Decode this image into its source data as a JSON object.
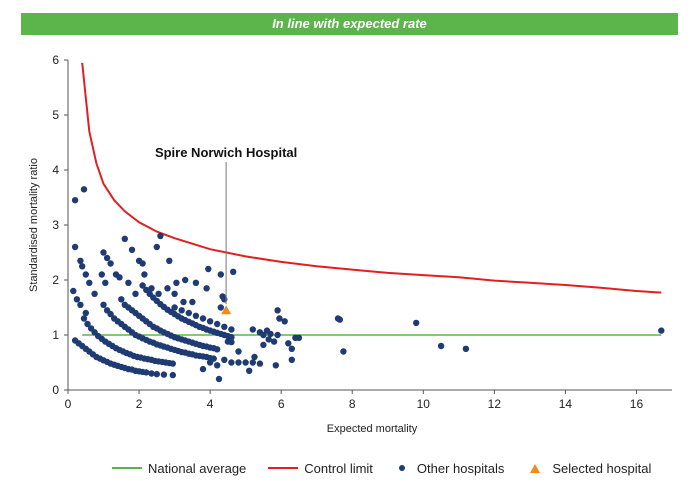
{
  "banner": {
    "title": "In line with expected rate",
    "color": "#5cb54a"
  },
  "chart_data": {
    "type": "scatter",
    "xlabel": "Expected mortality",
    "ylabel": "Standardised mortality ratio",
    "xlim": [
      0,
      17
    ],
    "ylim": [
      0,
      6
    ],
    "x_ticks": [
      "0",
      "2",
      "4",
      "6",
      "8",
      "10",
      "12",
      "14",
      "16"
    ],
    "y_ticks": [
      "0",
      "1",
      "2",
      "3",
      "4",
      "5",
      "6"
    ],
    "grid": false,
    "legend_position": "bottom",
    "annotation": {
      "text": "Spire Norwich Hospital",
      "x": 4.45,
      "y": 1.45
    },
    "series": [
      {
        "name": "National average",
        "kind": "line",
        "color": "#5cb54a",
        "x": [
          0.4,
          16.7
        ],
        "y": [
          1,
          1
        ]
      },
      {
        "name": "Control limit",
        "kind": "line",
        "color": "#e02020",
        "x": [
          0.4,
          0.6,
          0.8,
          1.0,
          1.3,
          1.6,
          2.0,
          2.5,
          3.0,
          4.0,
          5.0,
          6.0,
          7.0,
          8.0,
          9.0,
          10.0,
          11.0,
          12.0,
          13.0,
          14.0,
          15.0,
          16.0,
          16.7
        ],
        "y": [
          5.95,
          4.7,
          4.12,
          3.75,
          3.45,
          3.25,
          3.05,
          2.88,
          2.76,
          2.56,
          2.43,
          2.33,
          2.25,
          2.19,
          2.13,
          2.09,
          2.05,
          1.99,
          1.95,
          1.91,
          1.86,
          1.8,
          1.77
        ]
      },
      {
        "name": "Other hospitals",
        "kind": "scatter",
        "color": "#1f3b73",
        "points": [
          [
            0.2,
            3.45
          ],
          [
            0.45,
            3.65
          ],
          [
            0.2,
            2.6
          ],
          [
            0.35,
            2.35
          ],
          [
            0.4,
            2.25
          ],
          [
            0.5,
            2.1
          ],
          [
            0.6,
            1.95
          ],
          [
            0.15,
            1.8
          ],
          [
            0.25,
            1.65
          ],
          [
            0.35,
            1.55
          ],
          [
            0.5,
            1.4
          ],
          [
            0.75,
            1.75
          ],
          [
            1.0,
            2.5
          ],
          [
            1.1,
            2.4
          ],
          [
            1.2,
            2.3
          ],
          [
            1.35,
            2.1
          ],
          [
            1.45,
            2.05
          ],
          [
            0.95,
            2.1
          ],
          [
            1.05,
            1.95
          ],
          [
            1.6,
            2.75
          ],
          [
            1.8,
            2.55
          ],
          [
            2.0,
            2.35
          ],
          [
            2.1,
            2.3
          ],
          [
            1.7,
            1.95
          ],
          [
            1.9,
            1.75
          ],
          [
            2.15,
            2.1
          ],
          [
            2.5,
            2.6
          ],
          [
            2.6,
            2.8
          ],
          [
            2.85,
            2.35
          ],
          [
            2.35,
            1.85
          ],
          [
            2.55,
            1.75
          ],
          [
            3.05,
            1.95
          ],
          [
            3.3,
            2.0
          ],
          [
            3.6,
            1.95
          ],
          [
            3.5,
            1.6
          ],
          [
            2.8,
            1.85
          ],
          [
            3.0,
            1.75
          ],
          [
            3.25,
            1.6
          ],
          [
            3.9,
            1.85
          ],
          [
            3.95,
            2.2
          ],
          [
            4.3,
            2.1
          ],
          [
            4.65,
            2.15
          ],
          [
            4.35,
            1.7
          ],
          [
            4.3,
            1.5
          ],
          [
            4.4,
            1.65
          ],
          [
            0.2,
            0.9
          ],
          [
            0.3,
            0.85
          ],
          [
            0.4,
            0.8
          ],
          [
            0.5,
            0.75
          ],
          [
            0.6,
            0.7
          ],
          [
            0.7,
            0.65
          ],
          [
            0.8,
            0.6
          ],
          [
            0.9,
            0.57
          ],
          [
            1.0,
            0.54
          ],
          [
            1.1,
            0.51
          ],
          [
            1.2,
            0.48
          ],
          [
            1.3,
            0.46
          ],
          [
            1.4,
            0.44
          ],
          [
            1.5,
            0.42
          ],
          [
            1.6,
            0.4
          ],
          [
            1.7,
            0.38
          ],
          [
            1.8,
            0.37
          ],
          [
            1.9,
            0.35
          ],
          [
            2.0,
            0.34
          ],
          [
            2.1,
            0.33
          ],
          [
            2.2,
            0.32
          ],
          [
            2.35,
            0.3
          ],
          [
            2.5,
            0.29
          ],
          [
            2.7,
            0.28
          ],
          [
            2.95,
            0.27
          ],
          [
            0.45,
            1.3
          ],
          [
            0.55,
            1.2
          ],
          [
            0.65,
            1.12
          ],
          [
            0.75,
            1.05
          ],
          [
            0.85,
            0.98
          ],
          [
            0.95,
            0.93
          ],
          [
            1.05,
            0.88
          ],
          [
            1.15,
            0.84
          ],
          [
            1.25,
            0.8
          ],
          [
            1.35,
            0.76
          ],
          [
            1.45,
            0.73
          ],
          [
            1.55,
            0.7
          ],
          [
            1.65,
            0.67
          ],
          [
            1.75,
            0.65
          ],
          [
            1.85,
            0.62
          ],
          [
            1.95,
            0.6
          ],
          [
            2.05,
            0.59
          ],
          [
            2.15,
            0.57
          ],
          [
            2.25,
            0.56
          ],
          [
            2.35,
            0.55
          ],
          [
            2.45,
            0.53
          ],
          [
            2.55,
            0.52
          ],
          [
            2.65,
            0.51
          ],
          [
            2.75,
            0.5
          ],
          [
            2.85,
            0.49
          ],
          [
            2.95,
            0.48
          ],
          [
            1.0,
            1.55
          ],
          [
            1.1,
            1.45
          ],
          [
            1.2,
            1.38
          ],
          [
            1.3,
            1.3
          ],
          [
            1.4,
            1.25
          ],
          [
            1.5,
            1.2
          ],
          [
            1.6,
            1.15
          ],
          [
            1.7,
            1.1
          ],
          [
            1.8,
            1.05
          ],
          [
            1.9,
            1.0
          ],
          [
            2.0,
            0.97
          ],
          [
            2.1,
            0.94
          ],
          [
            2.2,
            0.91
          ],
          [
            2.3,
            0.88
          ],
          [
            2.4,
            0.86
          ],
          [
            2.5,
            0.83
          ],
          [
            2.6,
            0.81
          ],
          [
            2.7,
            0.79
          ],
          [
            2.8,
            0.77
          ],
          [
            2.9,
            0.75
          ],
          [
            3.0,
            0.73
          ],
          [
            3.1,
            0.71
          ],
          [
            3.2,
            0.69
          ],
          [
            3.3,
            0.68
          ],
          [
            3.4,
            0.66
          ],
          [
            3.5,
            0.65
          ],
          [
            3.6,
            0.63
          ],
          [
            3.7,
            0.62
          ],
          [
            3.8,
            0.61
          ],
          [
            3.9,
            0.6
          ],
          [
            4.0,
            0.58
          ],
          [
            4.1,
            0.57
          ],
          [
            1.5,
            1.65
          ],
          [
            1.6,
            1.55
          ],
          [
            1.7,
            1.5
          ],
          [
            1.8,
            1.45
          ],
          [
            1.9,
            1.4
          ],
          [
            2.0,
            1.35
          ],
          [
            2.1,
            1.3
          ],
          [
            2.2,
            1.25
          ],
          [
            2.3,
            1.2
          ],
          [
            2.4,
            1.15
          ],
          [
            2.5,
            1.12
          ],
          [
            2.6,
            1.08
          ],
          [
            2.7,
            1.05
          ],
          [
            2.8,
            1.02
          ],
          [
            2.9,
            0.99
          ],
          [
            3.0,
            0.96
          ],
          [
            3.1,
            0.94
          ],
          [
            3.2,
            0.92
          ],
          [
            3.3,
            0.9
          ],
          [
            3.4,
            0.88
          ],
          [
            3.5,
            0.86
          ],
          [
            3.6,
            0.84
          ],
          [
            3.7,
            0.82
          ],
          [
            3.8,
            0.8
          ],
          [
            3.9,
            0.79
          ],
          [
            4.0,
            0.77
          ],
          [
            4.1,
            0.76
          ],
          [
            4.2,
            0.74
          ],
          [
            2.1,
            1.9
          ],
          [
            2.2,
            1.82
          ],
          [
            2.3,
            1.75
          ],
          [
            2.4,
            1.68
          ],
          [
            2.5,
            1.62
          ],
          [
            2.6,
            1.56
          ],
          [
            2.7,
            1.51
          ],
          [
            2.8,
            1.46
          ],
          [
            2.9,
            1.42
          ],
          [
            3.0,
            1.38
          ],
          [
            3.1,
            1.34
          ],
          [
            3.2,
            1.3
          ],
          [
            3.3,
            1.27
          ],
          [
            3.4,
            1.24
          ],
          [
            3.5,
            1.21
          ],
          [
            3.6,
            1.18
          ],
          [
            3.7,
            1.15
          ],
          [
            3.8,
            1.13
          ],
          [
            3.9,
            1.1
          ],
          [
            4.0,
            1.08
          ],
          [
            4.1,
            1.06
          ],
          [
            4.2,
            1.04
          ],
          [
            4.3,
            1.02
          ],
          [
            4.4,
            1.0
          ],
          [
            4.5,
            0.98
          ],
          [
            4.6,
            0.96
          ],
          [
            3.0,
            1.5
          ],
          [
            3.2,
            1.45
          ],
          [
            3.4,
            1.4
          ],
          [
            3.6,
            1.35
          ],
          [
            3.8,
            1.3
          ],
          [
            4.0,
            1.25
          ],
          [
            4.2,
            1.2
          ],
          [
            4.4,
            1.15
          ],
          [
            4.6,
            1.1
          ],
          [
            4.5,
            0.88
          ],
          [
            4.6,
            0.87
          ],
          [
            3.8,
            0.38
          ],
          [
            4.0,
            0.5
          ],
          [
            4.2,
            0.45
          ],
          [
            4.25,
            0.2
          ],
          [
            4.4,
            0.55
          ],
          [
            4.6,
            0.5
          ],
          [
            4.8,
            0.7
          ],
          [
            4.8,
            0.5
          ],
          [
            5.0,
            0.5
          ],
          [
            5.1,
            0.35
          ],
          [
            5.2,
            0.5
          ],
          [
            5.25,
            0.6
          ],
          [
            5.4,
            0.48
          ],
          [
            5.2,
            1.1
          ],
          [
            5.4,
            1.05
          ],
          [
            5.5,
            1.0
          ],
          [
            5.6,
            1.08
          ],
          [
            5.7,
            1.02
          ],
          [
            5.5,
            0.82
          ],
          [
            5.65,
            0.92
          ],
          [
            5.8,
            0.88
          ],
          [
            5.9,
            1.45
          ],
          [
            5.95,
            1.3
          ],
          [
            6.1,
            1.25
          ],
          [
            6.2,
            0.85
          ],
          [
            5.9,
            1.0
          ],
          [
            6.3,
            0.75
          ],
          [
            6.4,
            0.95
          ],
          [
            6.3,
            0.55
          ],
          [
            5.85,
            0.45
          ],
          [
            6.5,
            0.95
          ],
          [
            7.6,
            1.3
          ],
          [
            7.65,
            1.28
          ],
          [
            7.75,
            0.7
          ],
          [
            9.8,
            1.22
          ],
          [
            10.5,
            0.8
          ],
          [
            11.2,
            0.75
          ],
          [
            16.7,
            1.08
          ]
        ]
      },
      {
        "name": "Selected hospital",
        "kind": "marker",
        "color": "#f08a1c",
        "points": [
          [
            4.45,
            1.45
          ]
        ]
      }
    ]
  }
}
